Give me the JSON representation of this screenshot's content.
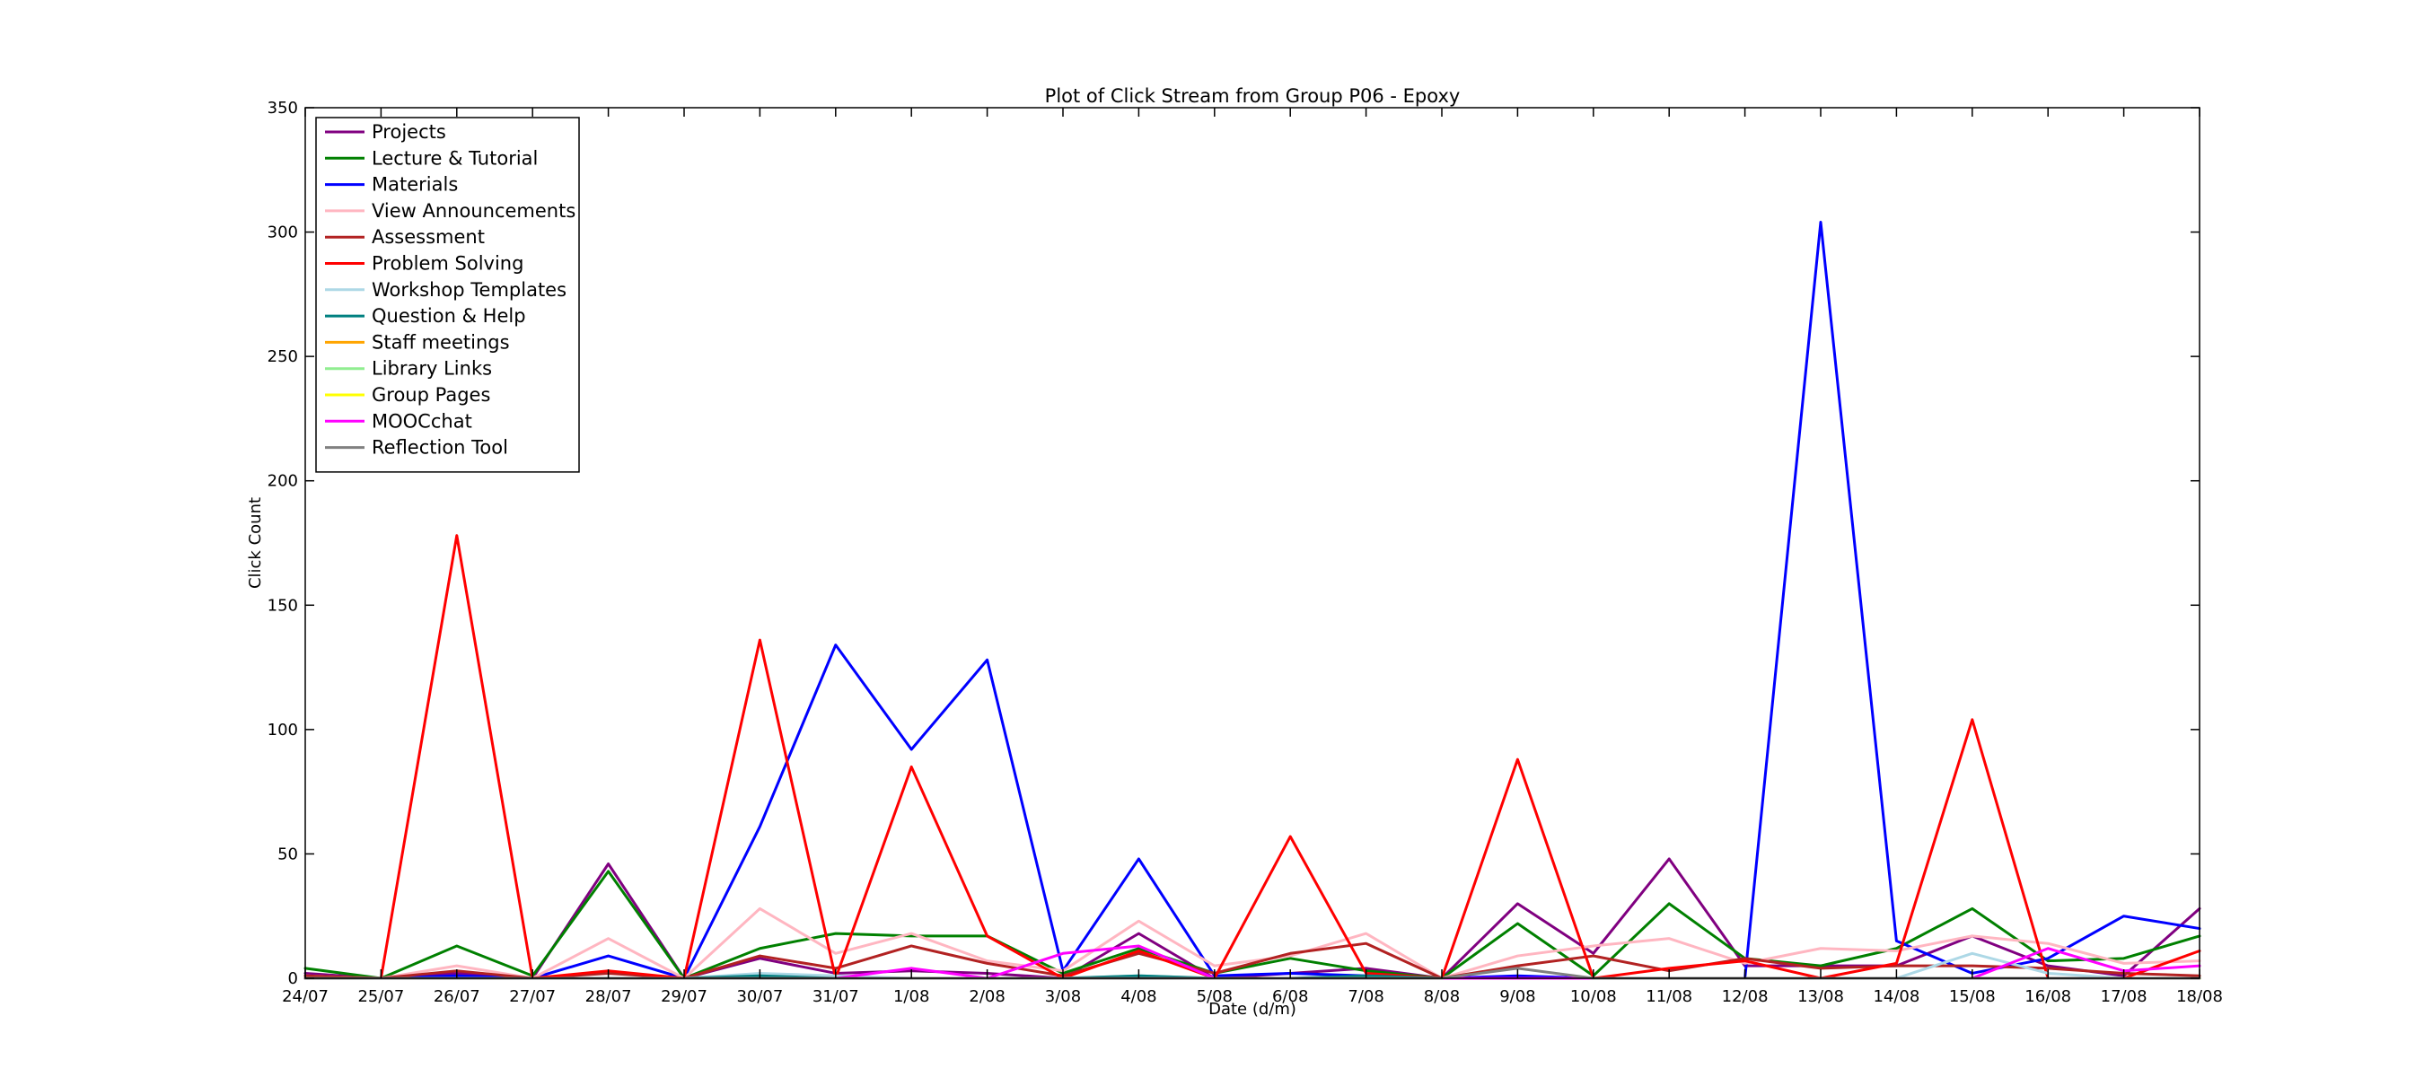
{
  "chart_data": {
    "type": "line",
    "title": "Plot of Click Stream from Group P06 - Epoxy",
    "xlabel": "Date (d/m)",
    "ylabel": "Click Count",
    "ylim": [
      0,
      350
    ],
    "yticks": [
      0,
      50,
      100,
      150,
      200,
      250,
      300,
      350
    ],
    "grid": false,
    "legend_position": "top-left",
    "categories": [
      "24/07",
      "25/07",
      "26/07",
      "27/07",
      "28/07",
      "29/07",
      "30/07",
      "31/07",
      "1/08",
      "2/08",
      "3/08",
      "4/08",
      "5/08",
      "6/08",
      "7/08",
      "8/08",
      "9/08",
      "10/08",
      "11/08",
      "12/08",
      "13/08",
      "14/08",
      "15/08",
      "16/08",
      "17/08",
      "18/08"
    ],
    "series": [
      {
        "name": "Projects",
        "color": "#800080",
        "values": [
          2,
          0,
          2,
          0,
          46,
          0,
          8,
          2,
          3,
          2,
          0,
          18,
          0,
          2,
          4,
          0,
          30,
          10,
          48,
          5,
          5,
          5,
          17,
          5,
          1,
          28
        ]
      },
      {
        "name": "Lecture & Tutorial",
        "color": "#008000",
        "values": [
          4,
          0,
          13,
          1,
          43,
          0,
          12,
          18,
          17,
          17,
          2,
          12,
          2,
          8,
          3,
          0,
          22,
          1,
          30,
          8,
          5,
          12,
          28,
          7,
          8,
          17
        ]
      },
      {
        "name": "Materials",
        "color": "#0000ff",
        "values": [
          0,
          0,
          1,
          0,
          9,
          0,
          61,
          134,
          92,
          128,
          3,
          48,
          1,
          2,
          1,
          0,
          1,
          0,
          0,
          0,
          304,
          15,
          2,
          8,
          25,
          20
        ]
      },
      {
        "name": "View Announcements",
        "color": "#ffb6c1",
        "values": [
          1,
          0,
          5,
          0,
          16,
          0,
          28,
          10,
          18,
          7,
          3,
          23,
          5,
          9,
          18,
          0,
          9,
          13,
          16,
          6,
          12,
          11,
          17,
          14,
          6,
          7
        ]
      },
      {
        "name": "Assessment",
        "color": "#b22222",
        "values": [
          1,
          0,
          3,
          0,
          2,
          0,
          9,
          4,
          13,
          6,
          1,
          10,
          2,
          10,
          14,
          0,
          5,
          9,
          3,
          8,
          4,
          5,
          5,
          4,
          2,
          1
        ]
      },
      {
        "name": "Problem Solving",
        "color": "#ff0000",
        "values": [
          0,
          0,
          178,
          0,
          3,
          0,
          136,
          0,
          85,
          17,
          0,
          11,
          0,
          57,
          2,
          0,
          88,
          0,
          4,
          7,
          0,
          6,
          104,
          0,
          0,
          11
        ]
      },
      {
        "name": "Workshop Templates",
        "color": "#add8e6",
        "values": [
          0,
          0,
          0,
          0,
          0,
          0,
          2,
          1,
          0,
          0,
          0,
          1,
          0,
          0,
          0,
          0,
          0,
          0,
          0,
          0,
          0,
          0,
          10,
          2,
          0,
          0
        ]
      },
      {
        "name": "Question & Help",
        "color": "#008080",
        "values": [
          0,
          0,
          0,
          0,
          0,
          0,
          1,
          0,
          0,
          0,
          0,
          1,
          0,
          0,
          1,
          0,
          0,
          0,
          0,
          0,
          0,
          0,
          0,
          0,
          0,
          0
        ]
      },
      {
        "name": "Staff meetings",
        "color": "#ffa500",
        "values": [
          0,
          0,
          0,
          0,
          0,
          0,
          0,
          0,
          0,
          0,
          0,
          0,
          0,
          0,
          0,
          0,
          0,
          0,
          0,
          0,
          0,
          0,
          0,
          0,
          0,
          0
        ]
      },
      {
        "name": "Library Links",
        "color": "#90ee90",
        "values": [
          0,
          0,
          0,
          0,
          0,
          0,
          0,
          0,
          0,
          0,
          0,
          0,
          0,
          0,
          0,
          0,
          0,
          0,
          0,
          0,
          0,
          0,
          0,
          0,
          0,
          0
        ]
      },
      {
        "name": "Group Pages",
        "color": "#ffff00",
        "values": [
          0,
          0,
          0,
          0,
          0,
          0,
          0,
          0,
          0,
          0,
          0,
          0,
          0,
          0,
          0,
          0,
          0,
          0,
          0,
          0,
          0,
          0,
          0,
          0,
          0,
          0
        ]
      },
      {
        "name": "MOOCchat",
        "color": "#ff00ff",
        "values": [
          0,
          0,
          0,
          0,
          0,
          0,
          0,
          0,
          4,
          0,
          10,
          13,
          0,
          0,
          0,
          0,
          0,
          0,
          0,
          0,
          0,
          0,
          0,
          12,
          3,
          5
        ]
      },
      {
        "name": "Reflection Tool",
        "color": "#808080",
        "values": [
          0,
          0,
          0,
          0,
          0,
          0,
          0,
          0,
          0,
          0,
          0,
          0,
          0,
          0,
          0,
          0,
          4,
          0,
          0,
          0,
          0,
          0,
          0,
          0,
          0,
          0
        ]
      }
    ]
  }
}
